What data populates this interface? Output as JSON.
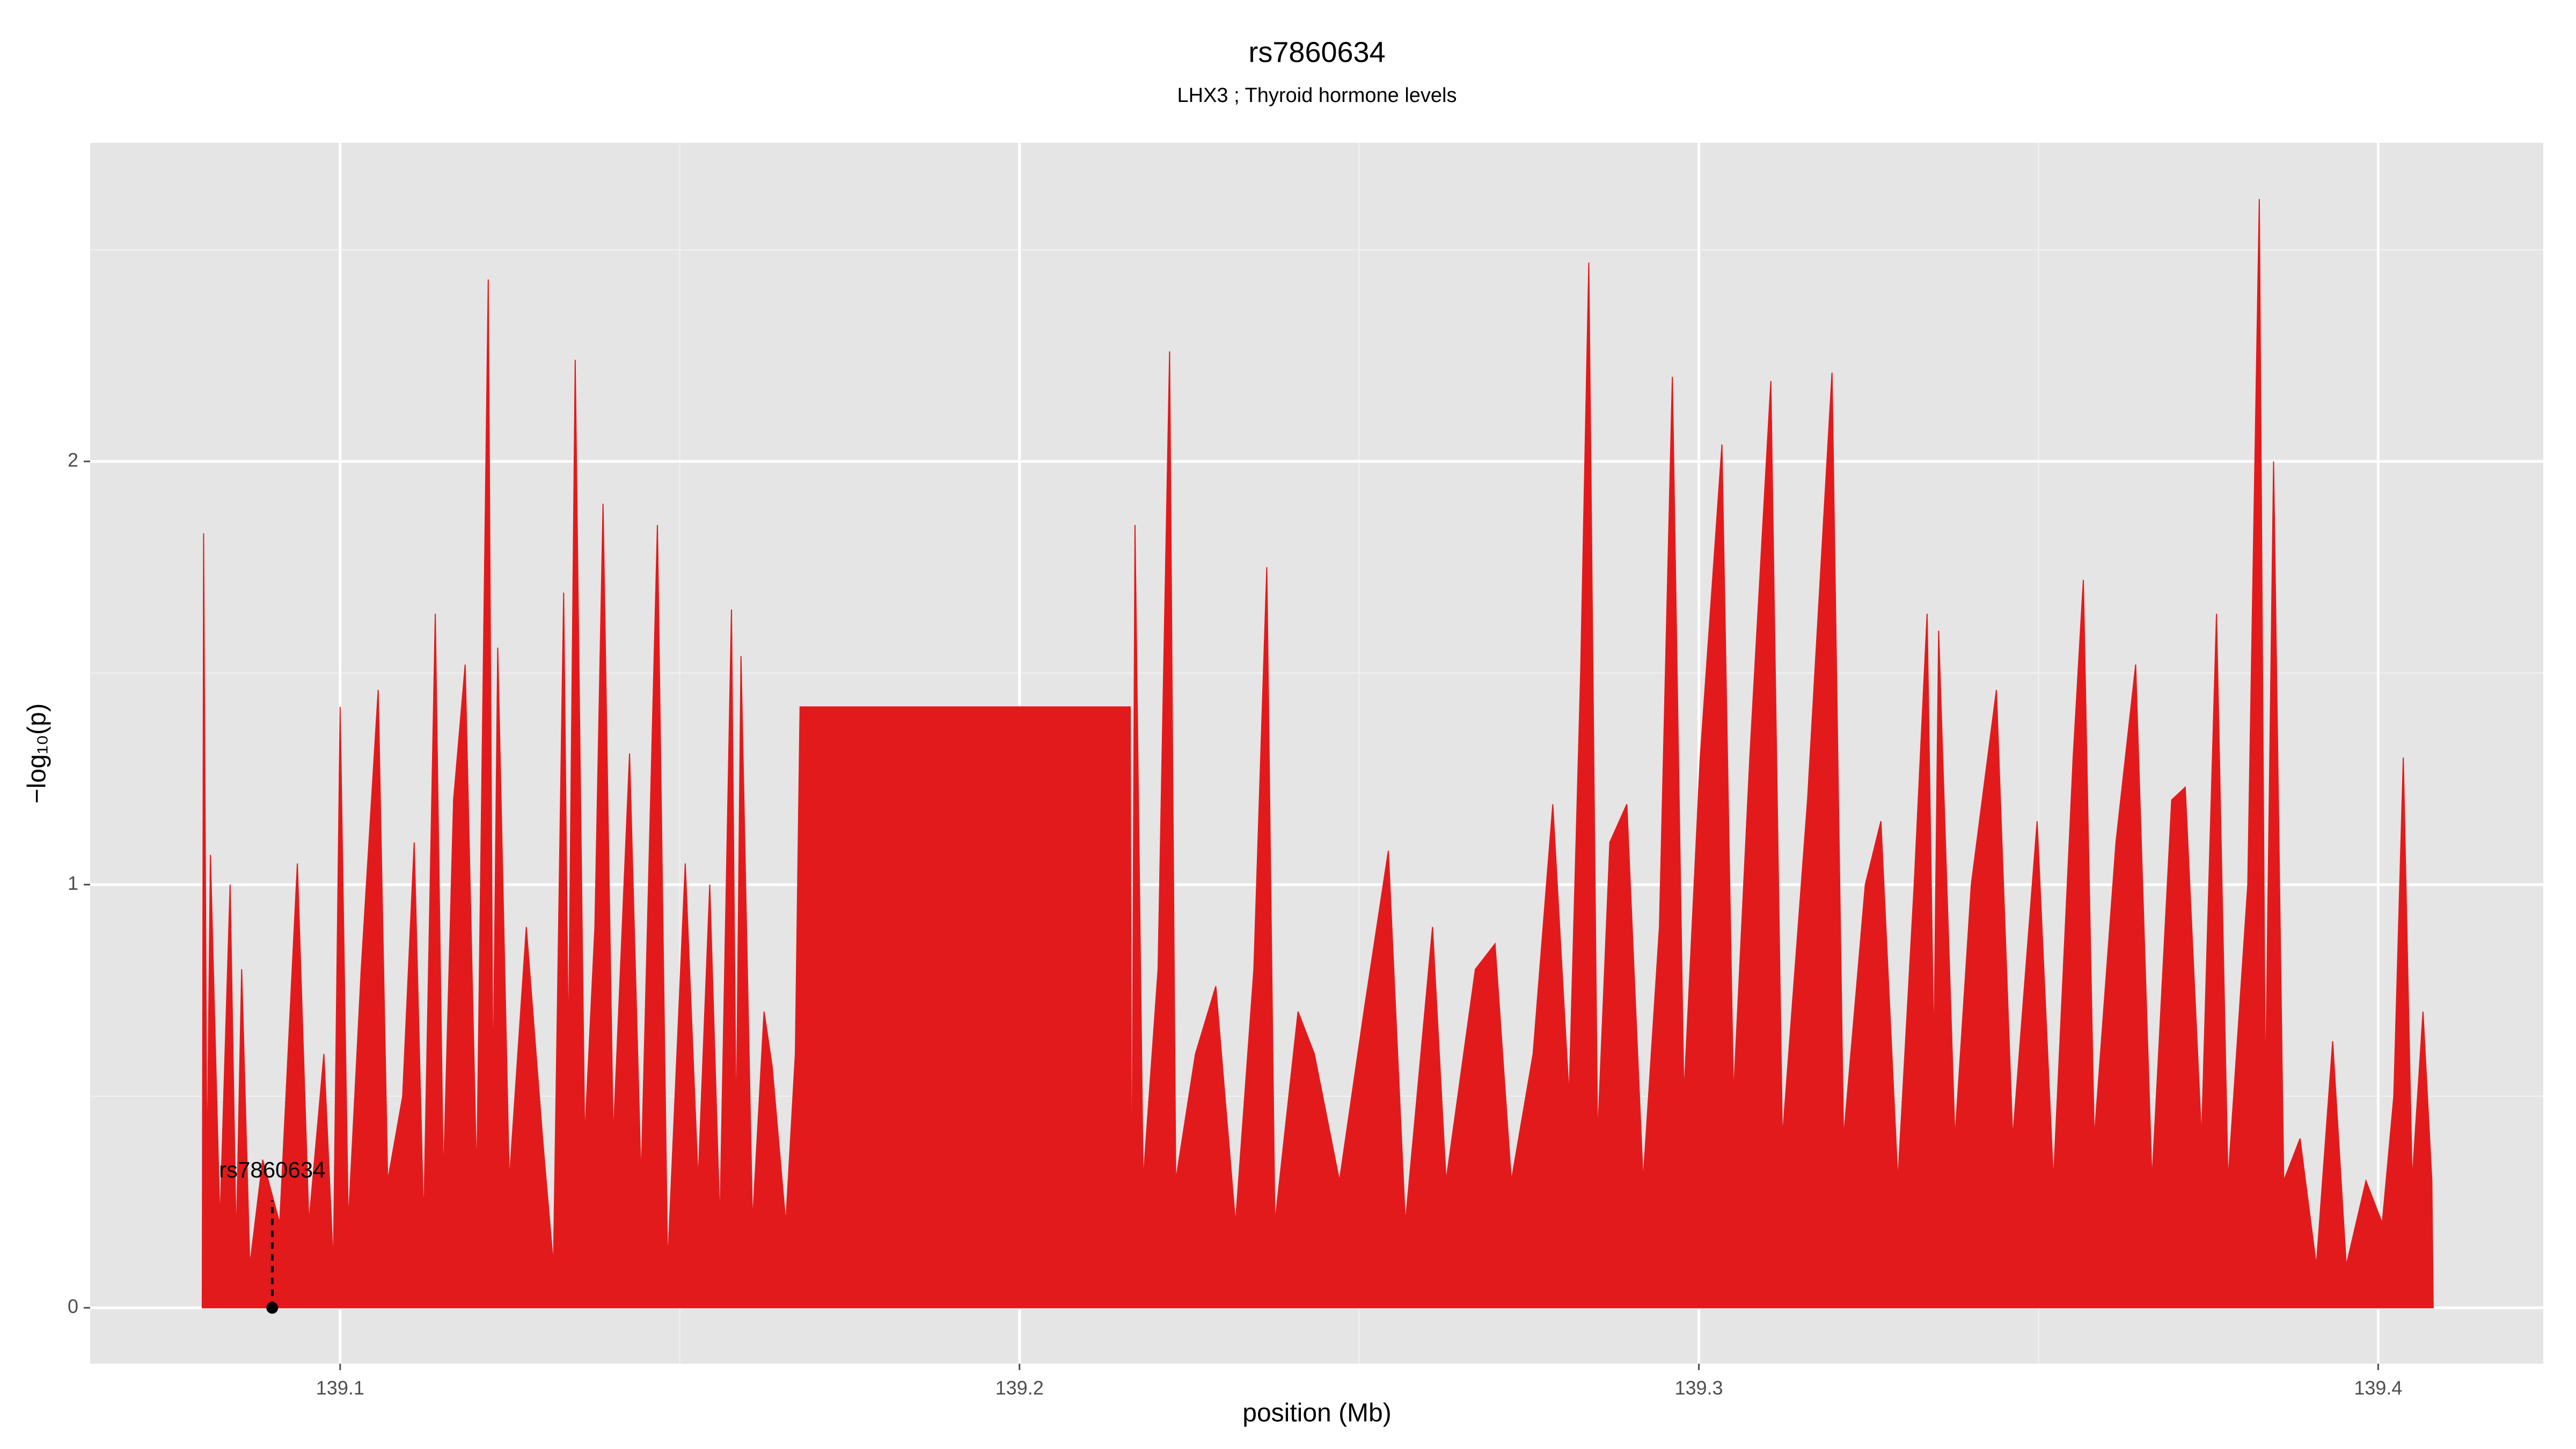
{
  "chart_data": {
    "type": "area",
    "title": "rs7860634",
    "subtitle": "LHX3  ; Thyroid hormone levels",
    "xlabel": "position (Mb)",
    "ylabel": "−log₁₀(p)",
    "color": "#e31a1c",
    "grid": true,
    "xlim": [
      139.0632,
      139.4243
    ],
    "ylim": [
      -0.132,
      2.753
    ],
    "xticks": [
      139.1,
      139.2,
      139.3,
      139.4
    ],
    "yticks": [
      0,
      1,
      2
    ],
    "xminor": [
      139.15,
      139.25,
      139.35
    ],
    "yminor": [
      0.5,
      1.5,
      2.5
    ],
    "annotation": {
      "text": "rs7860634",
      "x": 139.09,
      "y": 0
    },
    "x": [
      139.0797,
      139.0799,
      139.0804,
      139.0809,
      139.0823,
      139.0838,
      139.0847,
      139.0855,
      139.0867,
      139.0886,
      139.0911,
      139.0937,
      139.0954,
      139.0976,
      139.099,
      139.1,
      139.1012,
      139.1031,
      139.1056,
      139.107,
      139.1092,
      139.1109,
      139.1123,
      139.114,
      139.1152,
      139.1167,
      139.1184,
      139.1201,
      139.1218,
      139.1225,
      139.1232,
      139.1249,
      139.1274,
      139.1298,
      139.1314,
      139.1329,
      139.1336,
      139.1346,
      139.136,
      139.1375,
      139.1387,
      139.1402,
      139.1426,
      139.1443,
      139.1467,
      139.1482,
      139.1508,
      139.1527,
      139.1544,
      139.1559,
      139.1576,
      139.1583,
      139.159,
      139.1607,
      139.1624,
      139.1636,
      139.1656,
      139.167,
      139.1677,
      139.2163,
      139.2165,
      139.217,
      139.2182,
      139.2204,
      139.2221,
      139.223,
      139.2259,
      139.2289,
      139.2318,
      139.2345,
      139.2364,
      139.2376,
      139.241,
      139.2434,
      139.2471,
      139.2507,
      139.2543,
      139.2568,
      139.2608,
      139.2628,
      139.2671,
      139.27,
      139.2724,
      139.2756,
      139.2785,
      139.2809,
      139.2826,
      139.2838,
      139.2851,
      139.2869,
      139.2894,
      139.2918,
      139.2942,
      139.2961,
      139.2978,
      139.3002,
      139.3034,
      139.3051,
      139.3075,
      139.3106,
      139.3123,
      139.316,
      139.3196,
      139.3213,
      139.3245,
      139.3268,
      139.3293,
      139.3317,
      139.3336,
      139.3346,
      139.3353,
      139.3377,
      139.3401,
      139.3438,
      139.3462,
      139.3498,
      139.3522,
      139.3551,
      139.3566,
      139.3582,
      139.3614,
      139.3643,
      139.3667,
      139.3696,
      139.3716,
      139.374,
      139.3762,
      139.3779,
      139.3808,
      139.3825,
      139.3834,
      139.3846,
      139.3861,
      139.3885,
      139.3909,
      139.3933,
      139.3953,
      139.3982,
      139.4006,
      139.4023,
      139.4037,
      139.405,
      139.4066,
      139.4079,
      139.4081
    ],
    "values": [
      0,
      1.83,
      0.3,
      1.07,
      0.2,
      1.0,
      0.15,
      0.8,
      0.1,
      0.35,
      0.2,
      1.05,
      0.2,
      0.6,
      0.1,
      1.42,
      0.2,
      0.8,
      1.46,
      0.3,
      0.5,
      1.1,
      0.2,
      1.64,
      0.3,
      1.2,
      1.52,
      0.3,
      2.43,
      0.5,
      1.56,
      0.3,
      0.9,
      0.4,
      0.1,
      1.69,
      0.6,
      2.24,
      0.4,
      0.9,
      1.9,
      0.4,
      1.31,
      0.3,
      1.85,
      0.1,
      1.05,
      0.3,
      1.0,
      0.2,
      1.65,
      0.4,
      1.54,
      0.2,
      0.7,
      0.57,
      0.2,
      0.6,
      1.42,
      1.42,
      0.1,
      1.85,
      0.3,
      0.8,
      2.26,
      0.3,
      0.6,
      0.76,
      0.2,
      0.8,
      1.75,
      0.2,
      0.7,
      0.6,
      0.3,
      0.7,
      1.08,
      0.2,
      0.9,
      0.3,
      0.8,
      0.86,
      0.3,
      0.6,
      1.19,
      0.5,
      1.5,
      2.47,
      0.4,
      1.1,
      1.19,
      0.3,
      0.9,
      2.2,
      0.5,
      1.3,
      2.04,
      0.5,
      1.3,
      2.19,
      0.4,
      1.2,
      2.21,
      0.4,
      1.0,
      1.15,
      0.3,
      1.0,
      1.64,
      0.6,
      1.6,
      0.4,
      1.0,
      1.46,
      0.4,
      1.15,
      0.3,
      1.3,
      1.72,
      0.4,
      1.1,
      1.52,
      0.3,
      1.2,
      1.23,
      0.4,
      1.64,
      0.3,
      1.0,
      2.62,
      0.5,
      2.0,
      0.3,
      0.4,
      0.1,
      0.63,
      0.1,
      0.3,
      0.2,
      0.5,
      1.3,
      0.3,
      0.7,
      0.3,
      0
    ]
  }
}
